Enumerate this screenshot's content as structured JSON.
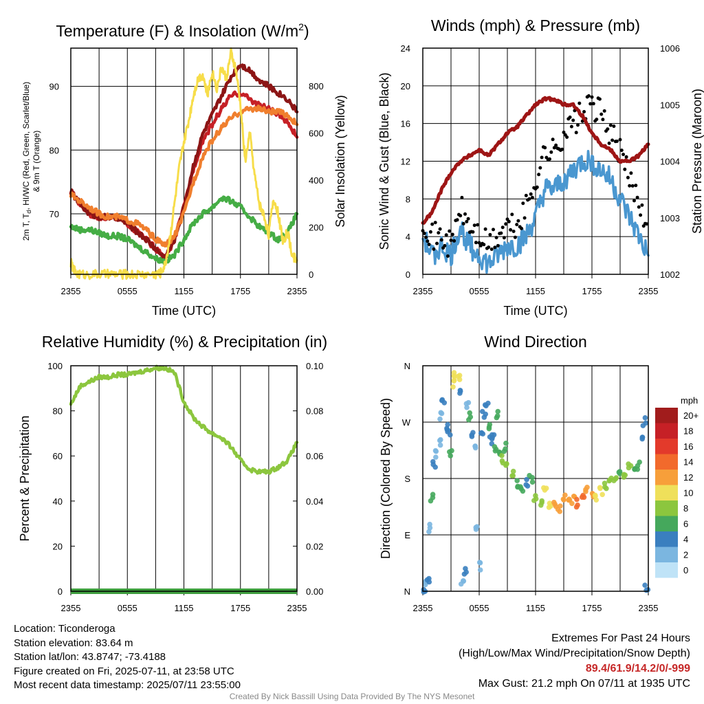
{
  "colors": {
    "red": "#c62026",
    "darkred": "#8c1515",
    "orange": "#f07f2e",
    "green": "#45ad45",
    "yellow": "#f7dd4a",
    "maroon": "#9e1515",
    "blue": "#4a97d0",
    "black": "#000000",
    "lightgreen": "#8cc63e",
    "precip_green": "#3e9e3e"
  },
  "chart_data": [
    {
      "id": "temperature",
      "type": "line",
      "title": "Temperature (F) & Insolation (W/m",
      "title_sup": "2",
      "title_close": ")",
      "xlabel": "Time (UTC)",
      "ylabel_lines": [
        "2m T, T",
        "d",
        ", HI/WC (Red, Green, Scarlet/Blue)",
        "& 9m T (Orange)"
      ],
      "y2label": "Solar Insolation (Yellow)",
      "x_ticks": [
        "2355",
        "0555",
        "1155",
        "1755",
        "2355"
      ],
      "ylim": [
        60.5,
        96
      ],
      "y_ticks": [
        70,
        80,
        90
      ],
      "y2lim": [
        0,
        960
      ],
      "y2_ticks": [
        0,
        200,
        400,
        600,
        800
      ],
      "xlim": [
        0,
        24
      ],
      "series": [
        {
          "name": "2m T",
          "color": "red",
          "x": [
            0,
            1,
            2,
            3,
            4,
            5,
            6,
            7,
            8,
            9,
            10,
            11,
            12,
            13,
            14,
            15,
            16,
            17,
            18,
            19,
            20,
            21,
            22,
            23,
            24
          ],
          "y": [
            73.5,
            71.5,
            70.0,
            69.5,
            69.5,
            69.3,
            68.5,
            67.2,
            66.0,
            64.5,
            63.0,
            66.0,
            71.0,
            77.0,
            81.5,
            84.0,
            86.5,
            88.5,
            89.0,
            88.0,
            87.0,
            86.5,
            85.5,
            84.5,
            82.0
          ]
        },
        {
          "name": "HI/WC",
          "color": "darkred",
          "x": [
            0,
            1,
            2,
            3,
            4,
            5,
            6,
            7,
            8,
            9,
            10,
            11,
            12,
            13,
            14,
            15,
            16,
            17,
            18,
            19,
            20,
            21,
            22,
            23,
            24
          ],
          "y": [
            73.5,
            71.5,
            70.0,
            69.5,
            69.5,
            69.3,
            68.5,
            67.2,
            66.0,
            64.5,
            63.0,
            66.0,
            71.0,
            77.5,
            82.5,
            85.5,
            88.5,
            91.5,
            93.5,
            92.5,
            91.0,
            90.0,
            89.0,
            88.0,
            86.0
          ]
        },
        {
          "name": "9m T",
          "color": "orange",
          "x": [
            0,
            1,
            2,
            3,
            4,
            5,
            6,
            7,
            8,
            9,
            10,
            11,
            12,
            13,
            14,
            15,
            16,
            17,
            18,
            19,
            20,
            21,
            22,
            23,
            24
          ],
          "y": [
            73.0,
            72.0,
            71.0,
            70.0,
            69.5,
            69.5,
            69.0,
            68.5,
            67.5,
            66.0,
            65.0,
            66.5,
            70.0,
            75.0,
            79.0,
            81.5,
            83.5,
            85.0,
            86.0,
            86.5,
            86.5,
            86.0,
            86.0,
            85.5,
            84.0
          ]
        },
        {
          "name": "Td",
          "color": "green",
          "x": [
            0,
            1,
            2,
            3,
            4,
            5,
            6,
            7,
            8,
            9,
            10,
            11,
            12,
            13,
            14,
            15,
            16,
            17,
            18,
            19,
            20,
            21,
            22,
            23,
            24
          ],
          "y": [
            68.0,
            67.5,
            67.5,
            67.0,
            66.5,
            66.5,
            66.0,
            65.0,
            64.0,
            63.0,
            62.5,
            63.5,
            66.0,
            68.5,
            70.0,
            71.0,
            72.5,
            72.0,
            71.0,
            69.5,
            68.0,
            67.0,
            66.0,
            67.0,
            70.0
          ]
        },
        {
          "name": "Solar",
          "color": "yellow",
          "axis": "y2",
          "x": [
            0,
            0.5,
            1,
            2,
            3,
            4,
            5,
            6,
            7,
            8,
            9,
            9.5,
            10,
            10.5,
            11,
            11.5,
            12,
            12.5,
            13,
            13.5,
            14,
            14.5,
            15,
            15.5,
            16,
            16.5,
            17,
            17.5,
            18,
            18.5,
            19,
            19.5,
            20,
            20.5,
            21,
            21.5,
            22,
            22.5,
            23,
            23.5,
            24
          ],
          "y": [
            50,
            5,
            0,
            0,
            0,
            0,
            0,
            0,
            0,
            0,
            0,
            5,
            40,
            150,
            300,
            450,
            560,
            650,
            760,
            830,
            850,
            760,
            860,
            790,
            880,
            830,
            940,
            870,
            720,
            480,
            600,
            420,
            300,
            250,
            170,
            320,
            260,
            140,
            180,
            80,
            60
          ]
        }
      ]
    },
    {
      "id": "winds",
      "type": "line",
      "title": "Winds (mph) & Pressure (mb)",
      "xlabel": "Time (UTC)",
      "ylabel": "Sonic Wind & Gust (Blue, Black)",
      "y2label": "Station Pressure (Maroon)",
      "x_ticks": [
        "2355",
        "0555",
        "1155",
        "1755",
        "2355"
      ],
      "ylim": [
        0,
        24
      ],
      "y_ticks": [
        0,
        4,
        8,
        12,
        16,
        20,
        24
      ],
      "y2lim": [
        1002,
        1006
      ],
      "y2_ticks": [
        1002,
        1003,
        1004,
        1005,
        1006
      ],
      "xlim": [
        0,
        24
      ],
      "series": [
        {
          "name": "Pressure",
          "color": "maroon",
          "axis": "y2",
          "x": [
            0,
            1,
            2,
            3,
            4,
            5,
            6,
            7,
            8,
            9,
            10,
            11,
            12,
            13,
            14,
            15,
            16,
            17,
            18,
            19,
            20,
            21,
            22,
            23,
            24
          ],
          "y": [
            1002.9,
            1003.1,
            1003.5,
            1003.8,
            1004.0,
            1004.1,
            1004.2,
            1004.1,
            1004.3,
            1004.5,
            1004.6,
            1004.8,
            1005.0,
            1005.1,
            1005.1,
            1005.0,
            1005.0,
            1004.8,
            1004.5,
            1004.3,
            1004.2,
            1004.0,
            1004.0,
            1004.1,
            1004.3
          ]
        },
        {
          "name": "Sonic Wind",
          "color": "blue",
          "x": [
            0,
            1,
            2,
            3,
            4,
            5,
            6,
            7,
            8,
            9,
            10,
            11,
            12,
            13,
            14,
            15,
            16,
            17,
            18,
            19,
            20,
            21,
            22,
            23,
            24
          ],
          "y": [
            4,
            2,
            3,
            2,
            5,
            3,
            2,
            1,
            2,
            3,
            3,
            4,
            6,
            9,
            9,
            10,
            11,
            12,
            12,
            11,
            10,
            8,
            6,
            4,
            2
          ]
        },
        {
          "name": "Gust",
          "color": "black",
          "x": [
            0,
            1,
            2,
            3,
            4,
            5,
            6,
            7,
            8,
            9,
            10,
            11,
            12,
            13,
            14,
            15,
            16,
            17,
            18,
            19,
            20,
            21,
            22,
            23,
            24
          ],
          "y": [
            6,
            4,
            4,
            3,
            7,
            5,
            4,
            3,
            4,
            5,
            5,
            7,
            10,
            13,
            13,
            15,
            16,
            17,
            18,
            17,
            15,
            13,
            10,
            8,
            5
          ]
        }
      ]
    },
    {
      "id": "humidity",
      "type": "line",
      "title": "Relative Humidity (%) & Precipitation (in)",
      "ylabel": "Percent & Precipitation",
      "x_ticks": [
        "2355",
        "0555",
        "1155",
        "1755",
        "2355"
      ],
      "ylim": [
        0,
        100
      ],
      "y_ticks": [
        0,
        20,
        40,
        60,
        80,
        100
      ],
      "y2lim": [
        0,
        0.1
      ],
      "y2_ticks": [
        "0.00",
        "0.02",
        "0.04",
        "0.06",
        "0.08",
        "0.10"
      ],
      "xlim": [
        0,
        24
      ],
      "series": [
        {
          "name": "RH",
          "color": "lightgreen",
          "x": [
            0,
            1,
            2,
            3,
            4,
            5,
            6,
            7,
            8,
            9,
            10,
            11,
            12,
            13,
            14,
            15,
            16,
            17,
            18,
            19,
            20,
            21,
            22,
            23,
            24
          ],
          "y": [
            83,
            91,
            93,
            95,
            95,
            96,
            96,
            97,
            98,
            99,
            99,
            97,
            84,
            77,
            73,
            70,
            68,
            64,
            58,
            54,
            53,
            53,
            55,
            58,
            66
          ]
        },
        {
          "name": "Precip",
          "color": "precip_green",
          "axis": "y2",
          "x": [
            0,
            24
          ],
          "y": [
            0,
            0
          ]
        }
      ]
    },
    {
      "id": "direction",
      "type": "scatter",
      "title": "Wind Direction",
      "ylabel": "Direction (Colored By Speed)",
      "x_ticks": [
        "2355",
        "0555",
        "1155",
        "1755",
        "2355"
      ],
      "y_ticks": [
        "N",
        "E",
        "S",
        "W",
        "N"
      ],
      "ylim": [
        0,
        360
      ],
      "xlim": [
        0,
        24
      ],
      "legend_title": "mph",
      "legend_labels": [
        "20+",
        "18",
        "16",
        "14",
        "12",
        "10",
        "8",
        "6",
        "4",
        "2",
        "0"
      ],
      "legend_colors": [
        "#a11c1c",
        "#c62026",
        "#e33a2b",
        "#f26a2c",
        "#f79f3a",
        "#efe05a",
        "#8cc63e",
        "#45a85c",
        "#3a7fbf",
        "#7bb6e0",
        "#bfe3f7"
      ],
      "points_x": [
        0.1,
        0.3,
        0.6,
        0.8,
        1.0,
        1.2,
        1.5,
        1.8,
        2.0,
        2.2,
        2.5,
        2.8,
        3.0,
        3.3,
        3.5,
        3.8,
        4.0,
        4.2,
        4.5,
        4.8,
        5.0,
        5.3,
        5.5,
        5.8,
        6.0,
        6.3,
        6.5,
        6.8,
        7.0,
        7.3,
        7.5,
        7.8,
        8.0,
        8.3,
        8.5,
        8.8,
        9.0,
        9.5,
        10,
        10.5,
        11,
        11.5,
        12,
        12.5,
        13,
        13.5,
        14,
        14.5,
        15,
        15.5,
        16,
        16.5,
        17,
        17.5,
        18,
        18.5,
        19,
        19.5,
        20,
        20.5,
        21,
        21.5,
        22,
        22.5,
        23,
        23.3,
        23.6,
        23.8
      ],
      "points_dir": [
        5,
        10,
        20,
        100,
        150,
        200,
        220,
        240,
        280,
        300,
        260,
        250,
        220,
        330,
        350,
        340,
        320,
        10,
        30,
        300,
        280,
        250,
        230,
        100,
        40,
        250,
        280,
        300,
        260,
        240,
        250,
        230,
        280,
        220,
        210,
        230,
        200,
        190,
        170,
        160,
        175,
        180,
        150,
        140,
        160,
        140,
        135,
        130,
        150,
        150,
        145,
        140,
        150,
        160,
        150,
        150,
        160,
        170,
        175,
        180,
        190,
        180,
        200,
        190,
        200,
        240,
        270,
        5
      ],
      "points_speed": [
        4,
        2,
        3,
        2,
        5,
        3,
        2,
        1,
        2,
        3,
        3,
        4,
        6,
        9,
        9,
        10,
        4,
        2,
        3,
        2,
        5,
        3,
        2,
        1,
        2,
        3,
        3,
        4,
        6,
        3,
        4,
        5,
        6,
        5,
        7,
        6,
        7,
        7,
        6,
        5,
        4,
        6,
        8,
        8,
        9,
        10,
        11,
        12,
        12,
        11,
        12,
        13,
        14,
        12,
        11,
        10,
        9,
        8,
        8,
        7,
        6,
        7,
        8,
        6,
        5,
        3,
        4,
        3
      ]
    }
  ],
  "info": {
    "location": "Location: Ticonderoga",
    "elevation": "Station elevation: 83.64 m",
    "latlon": "Station lat/lon: 43.8747; -73.4188",
    "created": "Figure created on Fri, 2025-07-11, at 23:58 UTC",
    "recent": "Most recent data timestamp: 2025/07/11 23:55:00"
  },
  "extremes": {
    "title": "Extremes For Past 24 Hours",
    "subtitle": "(High/Low/Max Wind/Precipitation/Snow Depth)",
    "values": "89.4/61.9/14.2/0/-999",
    "gust": "Max Gust: 21.2 mph On 07/11 at 1935 UTC"
  },
  "credit": "Created By Nick Bassill Using Data Provided By The NYS Mesonet"
}
